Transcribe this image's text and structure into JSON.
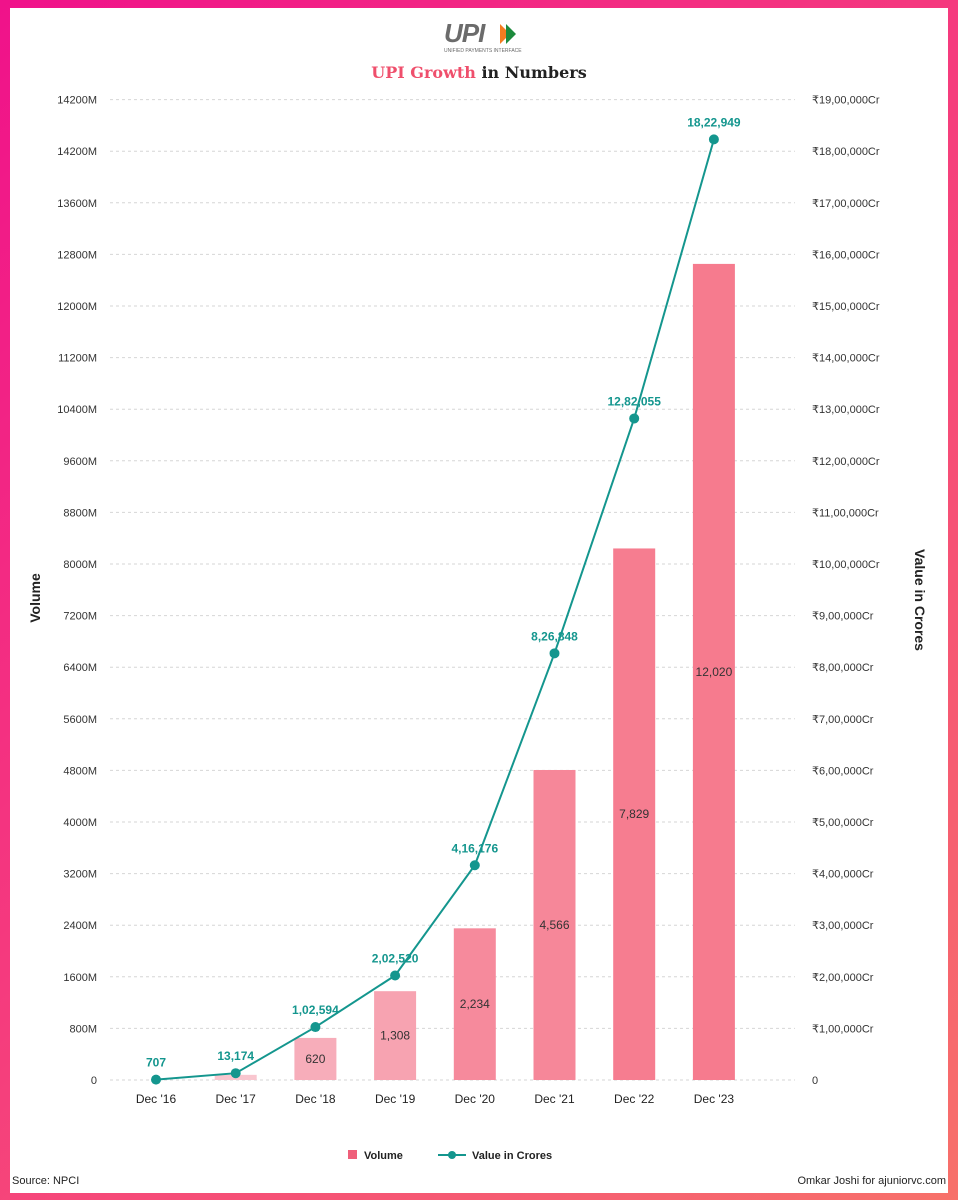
{
  "header": {
    "logo_text": "UPI",
    "logo_tagline": "UNIFIED PAYMENTS INTERFACE",
    "title_accent": "UPI Growth",
    "title_rest": " in Numbers"
  },
  "footer": {
    "source": "Source: NPCI",
    "credit": "Omkar Joshi for ajuniorvc.com"
  },
  "colors": {
    "accent": "#ef4f6c",
    "bar_colors": [
      "#f9d0d7",
      "#f9c6cf",
      "#f7adba",
      "#f7a3b1",
      "#f68a9c",
      "#f68799",
      "#f67d90",
      "#f67b8e"
    ],
    "line": "#14968e"
  },
  "chart_data": {
    "type": "bar",
    "categories": [
      "Dec '16",
      "Dec '17",
      "Dec '18",
      "Dec '19",
      "Dec '20",
      "Dec '21",
      "Dec '22",
      "Dec '23"
    ],
    "series": [
      {
        "name": "Volume",
        "type": "bar",
        "axis": "left",
        "values": [
          0,
          76,
          620,
          1308,
          2234,
          4566,
          7829,
          12020
        ],
        "labels": [
          "",
          "",
          "620",
          "1,308",
          "2,234",
          "4,566",
          "7,829",
          "12,020"
        ]
      },
      {
        "name": "Value in Crores",
        "type": "line",
        "axis": "right",
        "values": [
          707,
          13174,
          102594,
          202520,
          416176,
          826848,
          1282055,
          1822949
        ],
        "labels": [
          "707",
          "13,174",
          "1,02,594",
          "2,02,520",
          "4,16,176",
          "8,26,848",
          "12,82,055",
          "18,22,949"
        ]
      }
    ],
    "left_axis": {
      "label": "Volume",
      "ticks": [
        "0",
        "800M",
        "1600M",
        "2400M",
        "3200M",
        "4000M",
        "4800M",
        "5600M",
        "6400M",
        "7200M",
        "8000M",
        "8800M",
        "9600M",
        "10400M",
        "11200M",
        "12000M",
        "12800M",
        "13600M",
        "14200M",
        "14200M"
      ],
      "range": [
        0,
        15200
      ]
    },
    "right_axis": {
      "label": "Value in Crores",
      "ticks": [
        "0",
        "₹1,00,000Cr",
        "₹2,00,000Cr",
        "₹3,00,000Cr",
        "₹4,00,000Cr",
        "₹5,00,000Cr",
        "₹6,00,000Cr",
        "₹7,00,000Cr",
        "₹8,00,000Cr",
        "₹9,00,000Cr",
        "₹10,00,000Cr",
        "₹11,00,000Cr",
        "₹12,00,000Cr",
        "₹13,00,000Cr",
        "₹14,00,000Cr",
        "₹15,00,000Cr",
        "₹16,00,000Cr",
        "₹17,00,000Cr",
        "₹18,00,000Cr",
        "₹19,00,000Cr"
      ],
      "range": [
        0,
        1900000
      ]
    },
    "grid": true,
    "legend_position": "bottom-center"
  }
}
